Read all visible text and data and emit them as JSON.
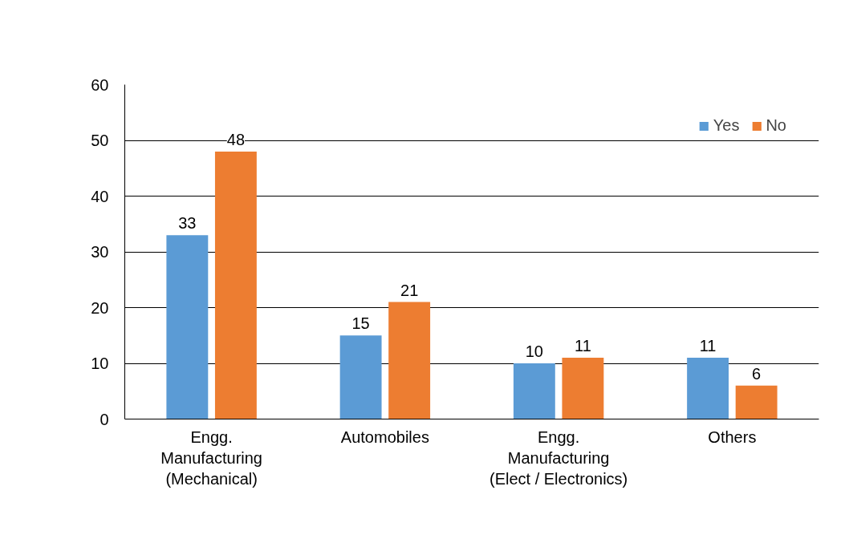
{
  "chart_data": {
    "type": "bar",
    "categories": [
      "Engg.\nManufacturing\n(Mechanical)",
      "Automobiles",
      "Engg.\nManufacturing\n(Elect / Electronics)",
      "Others"
    ],
    "series": [
      {
        "name": "Yes",
        "color": "#5b9bd5",
        "values": [
          33,
          15,
          10,
          11
        ]
      },
      {
        "name": "No",
        "color": "#ed7d31",
        "values": [
          48,
          21,
          11,
          6
        ]
      }
    ],
    "ylim": [
      0,
      60
    ],
    "yticks": [
      0,
      10,
      20,
      30,
      40,
      50,
      60
    ],
    "grid": "y",
    "legend": "top right",
    "data_labels": true
  }
}
